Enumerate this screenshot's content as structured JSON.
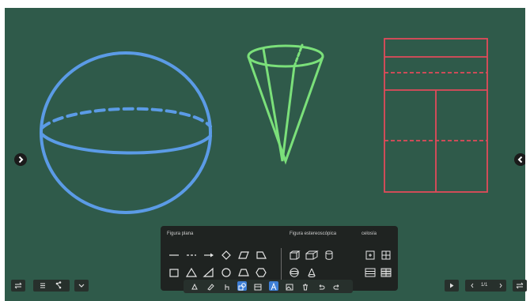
{
  "palette": {
    "flat_title": "Figura plana",
    "solid_title": "Figura estereoscópica",
    "table_title": "celosía"
  },
  "nav": {
    "page_indicator": "1/1"
  },
  "icons": {
    "prev_page": "chevron-left-icon",
    "next_page": "chevron-right-icon"
  },
  "colors": {
    "board": "#2f5a4a",
    "sphere": "#5b9be6",
    "cone": "#7be07a",
    "grid": "#e24a5a",
    "active_tool": "#3d7fd6"
  }
}
